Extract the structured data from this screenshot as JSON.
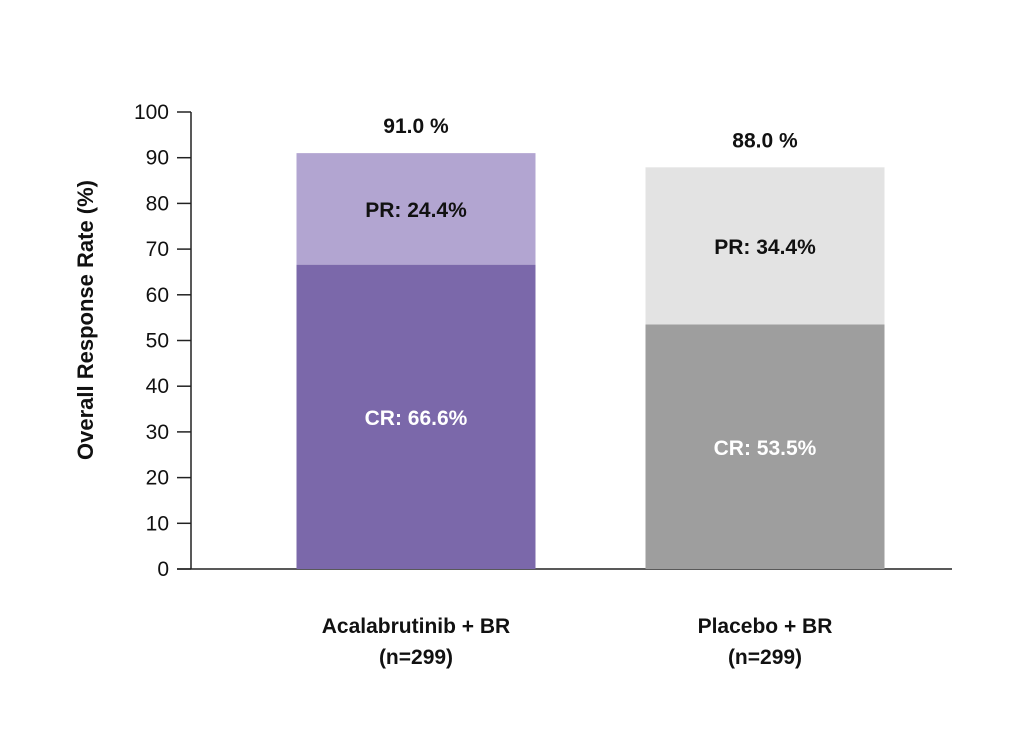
{
  "chart_data": {
    "type": "bar",
    "stacked": true,
    "ylabel": "Overall Response Rate (%)",
    "ylim": [
      0,
      100
    ],
    "yticks": [
      "0",
      "10",
      "20",
      "30",
      "40",
      "50",
      "60",
      "70",
      "80",
      "90",
      "100"
    ],
    "grid": false,
    "categories": [
      {
        "line1": "Acalabrutinib + BR",
        "line2": "(n=299)",
        "total_label": "91.0 %",
        "total": 91.0
      },
      {
        "line1": "Placebo + BR",
        "line2": "(n=299)",
        "total_label": "88.0 %",
        "total": 88.0
      }
    ],
    "series": [
      {
        "values": [
          66.6,
          53.5
        ],
        "labels": [
          "CR: 66.6%",
          "CR: 53.5%"
        ],
        "colors": [
          "#7b68aa",
          "#9e9e9e"
        ],
        "label_color": "#ffffff"
      },
      {
        "values": [
          24.4,
          34.4
        ],
        "labels": [
          "PR: 24.4%",
          "PR: 34.4%"
        ],
        "colors": [
          "#b2a5d1",
          "#e3e3e3"
        ],
        "label_color": "#111111"
      }
    ]
  }
}
